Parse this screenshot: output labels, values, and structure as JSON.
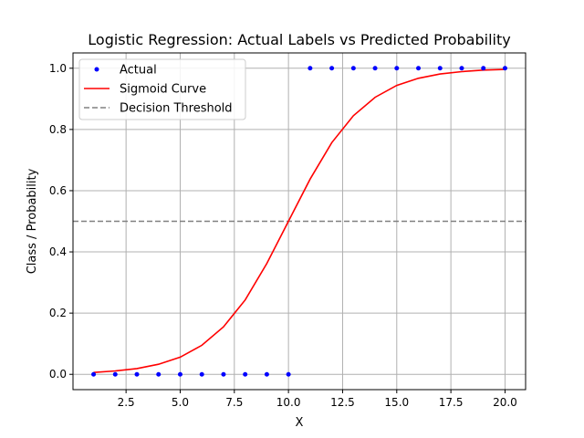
{
  "chart_data": {
    "type": "scatter",
    "title": "Logistic Regression: Actual Labels vs Predicted Probability",
    "xlabel": "X",
    "ylabel": "Class / Probability",
    "xlim": [
      0.05,
      20.95
    ],
    "ylim": [
      -0.05,
      1.05
    ],
    "xticks": [
      2.5,
      5.0,
      7.5,
      10.0,
      12.5,
      15.0,
      17.5,
      20.0
    ],
    "xtick_labels": [
      "2.5",
      "5.0",
      "7.5",
      "10.0",
      "12.5",
      "15.0",
      "17.5",
      "20.0"
    ],
    "yticks": [
      0.0,
      0.2,
      0.4,
      0.6,
      0.8,
      1.0
    ],
    "ytick_labels": [
      "0.0",
      "0.2",
      "0.4",
      "0.6",
      "0.8",
      "1.0"
    ],
    "grid": true,
    "legend_position": "top-left",
    "series": [
      {
        "name": "Actual",
        "kind": "scatter",
        "color": "#0000ff",
        "x": [
          1,
          2,
          3,
          4,
          5,
          6,
          7,
          8,
          9,
          10,
          11,
          12,
          13,
          14,
          15,
          16,
          17,
          18,
          19,
          20
        ],
        "y": [
          0,
          0,
          0,
          0,
          0,
          0,
          0,
          0,
          0,
          0,
          1,
          1,
          1,
          1,
          1,
          1,
          1,
          1,
          1,
          1
        ]
      },
      {
        "name": "Sigmoid Curve",
        "kind": "line",
        "color": "#ff0000",
        "x": [
          1,
          2,
          3,
          4,
          5,
          6,
          7,
          8,
          9,
          10,
          11,
          12,
          13,
          14,
          15,
          16,
          17,
          18,
          19,
          20
        ],
        "y": [
          0.006,
          0.011,
          0.019,
          0.033,
          0.056,
          0.095,
          0.155,
          0.243,
          0.362,
          0.5,
          0.638,
          0.757,
          0.845,
          0.905,
          0.944,
          0.967,
          0.981,
          0.989,
          0.994,
          0.996
        ]
      },
      {
        "name": "Decision Threshold",
        "kind": "hline",
        "color": "#808080",
        "y": 0.5
      }
    ]
  }
}
